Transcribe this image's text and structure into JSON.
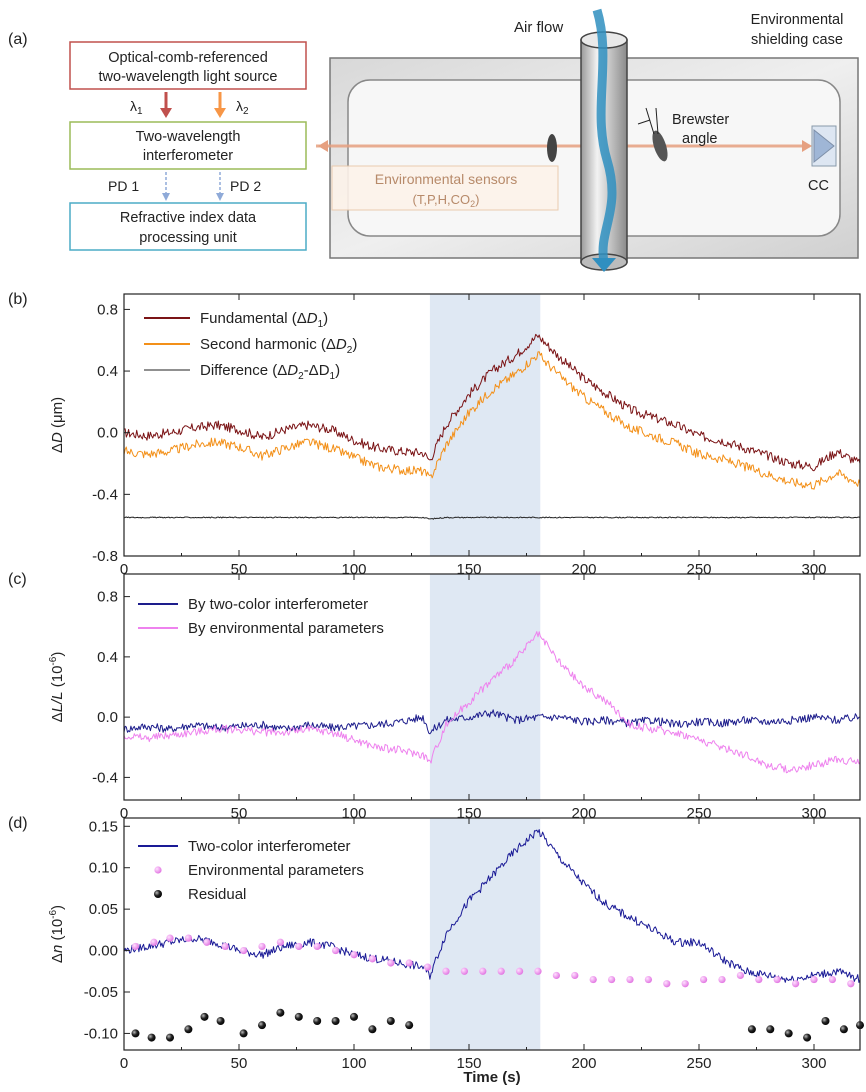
{
  "panel_a": {
    "label": "(a)",
    "source_box": {
      "line1": "Optical-comb-referenced",
      "line2": "two-wavelength light source"
    },
    "lambda1": "λ",
    "lambda1_sub": "1",
    "lambda2": "λ",
    "lambda2_sub": "2",
    "interferometer_box": {
      "line1": "Two-wavelength",
      "line2": "interferometer"
    },
    "pd1": "PD 1",
    "pd2": "PD 2",
    "processing_box": {
      "line1": "Refractive index data",
      "line2": "processing unit"
    },
    "air_flow": "Air flow",
    "case_label": {
      "line1": "Environmental",
      "line2": "shielding case"
    },
    "brewster": {
      "line1": "Brewster",
      "line2": "angle"
    },
    "sensors": {
      "line1": "Environmental sensors",
      "line2": "(T,P,H,CO",
      "line2_sub": "2",
      "line2_end": ")"
    },
    "cc": "CC",
    "colors": {
      "source_border": "#c0504d",
      "interf_border": "#9bbb59",
      "proc_border": "#4bacc6",
      "arrow1": "#c0504d",
      "arrow2": "#f79646",
      "beam": "#e6a080",
      "flow": "#2f8fc0"
    }
  },
  "chart_data": [
    {
      "panel": "(b)",
      "type": "line",
      "ylabel_main": "Δ",
      "ylabel_ital": "D",
      "ylabel_unit": " (μm)",
      "xlim": [
        0,
        320
      ],
      "ylim": [
        -0.8,
        0.9
      ],
      "xticks": [
        "0",
        "50",
        "100",
        "150",
        "200",
        "250",
        "300"
      ],
      "yticks": [
        "-0.8",
        "-0.4",
        "0.0",
        "0.4",
        "0.8"
      ],
      "shade": [
        133,
        181
      ],
      "x": [
        0,
        10,
        20,
        30,
        40,
        50,
        60,
        70,
        80,
        90,
        100,
        110,
        120,
        130,
        133,
        140,
        150,
        160,
        170,
        180,
        190,
        200,
        210,
        220,
        230,
        240,
        250,
        260,
        270,
        280,
        290,
        300,
        310,
        320
      ],
      "series": [
        {
          "name": "Fundamental (ΔD₁)",
          "legend_main": "Fundamental (Δ",
          "legend_ital": "D",
          "legend_sub": "1",
          "legend_end": ")",
          "color": "#7b1416",
          "values": [
            0.0,
            -0.02,
            0.0,
            0.03,
            0.05,
            0.02,
            -0.03,
            0.02,
            0.05,
            0.02,
            -0.05,
            -0.1,
            -0.12,
            -0.13,
            -0.18,
            0.05,
            0.25,
            0.4,
            0.5,
            0.63,
            0.48,
            0.35,
            0.25,
            0.15,
            0.1,
            0.05,
            -0.02,
            -0.05,
            -0.1,
            -0.15,
            -0.2,
            -0.22,
            -0.12,
            -0.2
          ]
        },
        {
          "name": "Second harmonic (ΔD₂)",
          "legend_main": "Second harmonic (Δ",
          "legend_ital": "D",
          "legend_sub": "2",
          "legend_end": ")",
          "color": "#f39019",
          "values": [
            -0.12,
            -0.14,
            -0.12,
            -0.08,
            -0.06,
            -0.09,
            -0.15,
            -0.1,
            -0.06,
            -0.1,
            -0.16,
            -0.22,
            -0.24,
            -0.25,
            -0.3,
            -0.08,
            0.13,
            0.28,
            0.38,
            0.51,
            0.36,
            0.23,
            0.13,
            0.03,
            -0.02,
            -0.07,
            -0.14,
            -0.17,
            -0.22,
            -0.27,
            -0.32,
            -0.34,
            -0.26,
            -0.33
          ]
        },
        {
          "name": "Difference (ΔD₂-ΔD₁)",
          "legend_main": "Difference (Δ",
          "legend_ital": "D",
          "legend_sub": "2",
          "legend_end": "-ΔD",
          "legend_sub2": "1",
          "legend_end2": ")",
          "color": "#222222",
          "values": [
            -0.55,
            -0.55,
            -0.55,
            -0.55,
            -0.55,
            -0.55,
            -0.55,
            -0.55,
            -0.55,
            -0.55,
            -0.55,
            -0.55,
            -0.55,
            -0.55,
            -0.56,
            -0.55,
            -0.55,
            -0.55,
            -0.55,
            -0.55,
            -0.55,
            -0.55,
            -0.55,
            -0.55,
            -0.55,
            -0.55,
            -0.55,
            -0.55,
            -0.55,
            -0.55,
            -0.55,
            -0.55,
            -0.55,
            -0.55
          ]
        }
      ]
    },
    {
      "panel": "(c)",
      "type": "line",
      "ylabel_main": "Δ",
      "ylabel_ital": "L/L",
      "ylabel_unit": " (10",
      "ylabel_sup": "-6",
      "ylabel_end": ")",
      "xlim": [
        0,
        320
      ],
      "ylim": [
        -0.55,
        0.95
      ],
      "xticks": [
        "0",
        "50",
        "100",
        "150",
        "200",
        "250",
        "300"
      ],
      "yticks": [
        "-0.4",
        "0.0",
        "0.4",
        "0.8"
      ],
      "shade": [
        133,
        181
      ],
      "x": [
        0,
        10,
        20,
        30,
        40,
        50,
        60,
        70,
        80,
        90,
        100,
        110,
        120,
        130,
        133,
        140,
        150,
        160,
        170,
        180,
        190,
        200,
        210,
        220,
        230,
        240,
        250,
        260,
        270,
        280,
        290,
        300,
        310,
        320
      ],
      "series": [
        {
          "name": "By two-color interferometer",
          "color": "#1d1d8c",
          "values": [
            -0.08,
            -0.06,
            -0.08,
            -0.05,
            -0.07,
            -0.06,
            -0.05,
            -0.08,
            -0.05,
            -0.07,
            -0.06,
            -0.05,
            -0.03,
            0.0,
            -0.1,
            -0.02,
            0.0,
            0.03,
            -0.02,
            0.0,
            0.0,
            -0.03,
            -0.02,
            -0.04,
            -0.02,
            -0.05,
            -0.03,
            -0.04,
            -0.02,
            -0.03,
            -0.02,
            0.0,
            -0.02,
            0.0
          ]
        },
        {
          "name": "By environmental parameters",
          "color": "#ee82ee",
          "values": [
            -0.12,
            -0.14,
            -0.12,
            -0.1,
            -0.08,
            -0.08,
            -0.1,
            -0.1,
            -0.08,
            -0.1,
            -0.15,
            -0.2,
            -0.22,
            -0.25,
            -0.3,
            -0.05,
            0.1,
            0.25,
            0.38,
            0.55,
            0.35,
            0.2,
            0.1,
            -0.05,
            -0.08,
            -0.1,
            -0.15,
            -0.2,
            -0.25,
            -0.32,
            -0.35,
            -0.32,
            -0.28,
            -0.3
          ]
        }
      ]
    },
    {
      "panel": "(d)",
      "type": "line",
      "ylabel_main": "Δ",
      "ylabel_ital": "n",
      "ylabel_unit": " (10",
      "ylabel_sup": "-6",
      "ylabel_end": ")",
      "xlabel": "Time (s)",
      "xlim": [
        0,
        320
      ],
      "ylim": [
        -0.12,
        0.16
      ],
      "xticks": [
        "0",
        "50",
        "100",
        "150",
        "200",
        "250",
        "300"
      ],
      "yticks": [
        "-0.10",
        "-0.05",
        "0.00",
        "0.05",
        "0.10",
        "0.15"
      ],
      "shade": [
        133,
        181
      ],
      "series": [
        {
          "name": "Two-color interferometer",
          "color": "#1a1a96",
          "x": [
            0,
            10,
            20,
            30,
            40,
            50,
            60,
            70,
            80,
            90,
            100,
            110,
            120,
            130,
            133,
            140,
            150,
            160,
            170,
            180,
            190,
            200,
            210,
            220,
            230,
            240,
            250,
            260,
            270,
            280,
            290,
            300,
            310,
            320
          ],
          "values": [
            0.0,
            0.005,
            0.01,
            0.015,
            0.01,
            0.0,
            -0.005,
            0.005,
            0.01,
            0.005,
            -0.005,
            -0.01,
            -0.015,
            -0.02,
            -0.03,
            0.02,
            0.06,
            0.09,
            0.12,
            0.145,
            0.11,
            0.08,
            0.055,
            0.04,
            0.025,
            0.01,
            0.01,
            -0.01,
            -0.025,
            -0.03,
            -0.035,
            -0.03,
            -0.025,
            -0.035
          ]
        },
        {
          "name": "Environmental parameters",
          "color": "#ee82ee",
          "marker": "dot",
          "x": [
            5,
            13,
            20,
            28,
            36,
            44,
            52,
            60,
            68,
            76,
            84,
            92,
            100,
            108,
            116,
            124,
            132,
            140,
            148,
            156,
            164,
            172,
            180,
            188,
            196,
            204,
            212,
            220,
            228,
            236,
            244,
            252,
            260,
            268,
            276,
            284,
            292,
            300,
            308,
            316
          ],
          "values": [
            0.005,
            0.01,
            0.015,
            0.015,
            0.01,
            0.005,
            0.0,
            0.005,
            0.01,
            0.005,
            0.005,
            0.0,
            -0.005,
            -0.01,
            -0.015,
            -0.015,
            -0.02,
            -0.025,
            -0.025,
            -0.025,
            -0.025,
            -0.025,
            -0.025,
            -0.03,
            -0.03,
            -0.035,
            -0.035,
            -0.035,
            -0.035,
            -0.04,
            -0.04,
            -0.035,
            -0.035,
            -0.03,
            -0.035,
            -0.035,
            -0.04,
            -0.035,
            -0.035,
            -0.04
          ]
        },
        {
          "name": "Residual",
          "color": "#111111",
          "marker": "ball",
          "x": [
            5,
            12,
            20,
            28,
            35,
            42,
            52,
            60,
            68,
            76,
            84,
            92,
            100,
            108,
            116,
            124,
            273,
            281,
            289,
            297,
            305,
            313,
            320
          ],
          "values": [
            -0.1,
            -0.105,
            -0.105,
            -0.095,
            -0.08,
            -0.085,
            -0.1,
            -0.09,
            -0.075,
            -0.08,
            -0.085,
            -0.085,
            -0.08,
            -0.095,
            -0.085,
            -0.09,
            -0.095,
            -0.095,
            -0.1,
            -0.105,
            -0.085,
            -0.095,
            -0.09
          ]
        }
      ]
    }
  ]
}
